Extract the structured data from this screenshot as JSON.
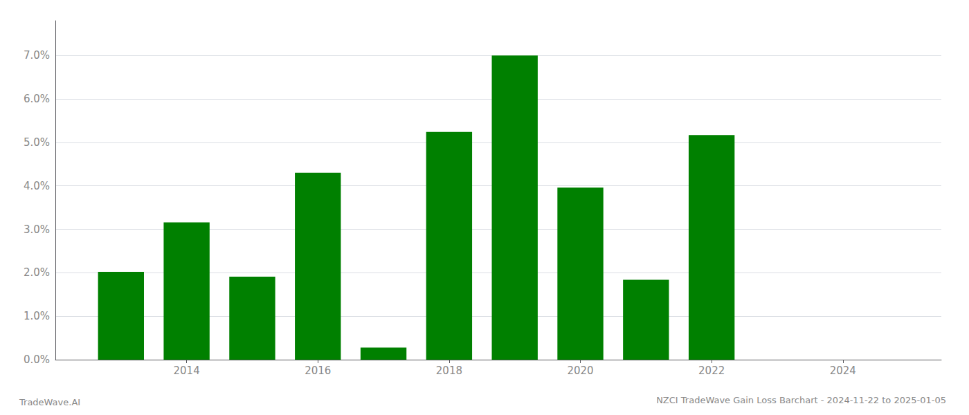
{
  "chart_data": {
    "type": "bar",
    "title": "NZCI TradeWave Gain Loss Barchart - 2024-11-22 to 2025-01-05",
    "annotations": [
      "TradeWave.AI"
    ],
    "x": [
      2013,
      2014,
      2015,
      2016,
      2017,
      2018,
      2019,
      2020,
      2021,
      2022
    ],
    "values": [
      0.0202,
      0.0316,
      0.0191,
      0.043,
      0.0028,
      0.0524,
      0.07,
      0.0396,
      0.0184,
      0.0517
    ],
    "color": "#008000",
    "xlim": [
      2012.0,
      2025.5
    ],
    "xticks": [
      2014,
      2016,
      2018,
      2020,
      2022,
      2024
    ],
    "ylim": [
      0,
      0.078
    ],
    "yticks": [
      {
        "value": 0.0,
        "label": "0.0%"
      },
      {
        "value": 0.01,
        "label": "1.0%"
      },
      {
        "value": 0.02,
        "label": "2.0%"
      },
      {
        "value": 0.03,
        "label": "3.0%"
      },
      {
        "value": 0.04,
        "label": "4.0%"
      },
      {
        "value": 0.05,
        "label": "5.0%"
      },
      {
        "value": 0.06,
        "label": "6.0%"
      },
      {
        "value": 0.07,
        "label": "7.0%"
      }
    ],
    "grid": true
  }
}
